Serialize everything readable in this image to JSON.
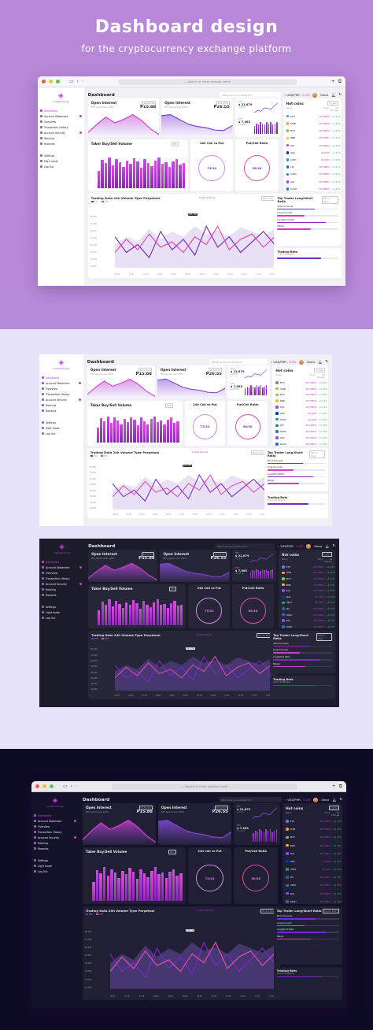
{
  "hero": {
    "title": "Dashboard design",
    "subtitle": "for the cryptocurrency exchange platform"
  },
  "browser": {
    "address_placeholder": "Search or enter website name"
  },
  "brand": {
    "name": "CryptoExchange",
    "accent": "#c93be0",
    "pink": "#e0389e"
  },
  "sidebar": {
    "items": [
      {
        "label": "Dashboard",
        "icon": "dashboard-icon",
        "active": true
      },
      {
        "label": "Account Statement",
        "icon": "statement-icon",
        "badge": true
      },
      {
        "label": "Overview",
        "icon": "overview-icon"
      },
      {
        "label": "Transaction History",
        "icon": "history-icon"
      },
      {
        "label": "Account Security",
        "icon": "security-icon",
        "badge": true
      },
      {
        "label": "Ranking",
        "icon": "ranking-icon"
      },
      {
        "label": "Rewards",
        "icon": "rewards-icon"
      }
    ],
    "bottom_light": [
      {
        "label": "Settings",
        "icon": "gear-icon"
      },
      {
        "label": "Dark mode",
        "icon": "moon-icon"
      },
      {
        "label": "Log Out",
        "icon": "logout-icon"
      }
    ],
    "bottom_dark": [
      {
        "label": "Settings",
        "icon": "gear-icon"
      },
      {
        "label": "Light mode",
        "icon": "sun-icon"
      },
      {
        "label": "Log Out",
        "icon": "logout-icon"
      }
    ]
  },
  "topbar": {
    "title": "Dashboard",
    "search_placeholder": "What are you looking for?",
    "pair": "USD/PHR",
    "pair_delta": "- 0.4%",
    "user": "Diana"
  },
  "open_interest": [
    {
      "title": "Open Interest",
      "tag": "BCH/USD",
      "sub": "BTC typical over 100%",
      "value": "P15.88"
    },
    {
      "title": "Open Interest",
      "tag": "BCH/USD",
      "sub": "BTC typical over 100%",
      "value": "P26.55"
    }
  ],
  "price_card": {
    "btc": {
      "label": "BTC",
      "value": "$ 21,879",
      "change": "+2.3%"
    },
    "eth": {
      "label": "ETH",
      "value": "$ 7,963",
      "change": "+1.27%"
    }
  },
  "taker": {
    "title": "Taker Buy/Sell Volume",
    "tag": "BTC",
    "series": [
      {
        "name": "Buy",
        "values": [
          42,
          68,
          60,
          74,
          55,
          70,
          62,
          50,
          66,
          58,
          72,
          64,
          48,
          70,
          60,
          52,
          66,
          74,
          58,
          62,
          50,
          64,
          70,
          56,
          60
        ]
      },
      {
        "name": "Sell",
        "values": [
          20,
          30,
          25,
          35,
          28,
          32,
          30,
          22,
          34,
          26,
          30,
          28,
          20,
          32,
          26,
          24,
          30,
          34,
          26,
          28,
          22,
          30,
          32,
          24,
          28
        ]
      }
    ]
  },
  "call_put": {
    "title": "24h Call vs Put",
    "value": "75/54"
  },
  "put_call": {
    "title": "Put/Call Ratio",
    "value": "58/38"
  },
  "hot_coins": {
    "title": "Hot coins",
    "filter": "Crypto",
    "columns": [
      "Name",
      "Price",
      "24 Change"
    ],
    "rows": [
      {
        "name": "ETH",
        "price": "P0738827",
        "change": "+2.23%",
        "color": "#627eea"
      },
      {
        "name": "SHIB",
        "price": "P0738827",
        "change": "+2.25%",
        "color": "#f0a030"
      },
      {
        "name": "BCH",
        "price": "P0738827",
        "change": "+2.23%",
        "color": "#8dc351"
      },
      {
        "name": "BNB",
        "price": "P0738827",
        "change": "+2.23%",
        "color": "#f3ba2f"
      },
      {
        "name": "SOL",
        "price": "P0738827",
        "change": "+2.23%",
        "color": "#9945ff"
      },
      {
        "name": "ADA",
        "price": "$0.2057",
        "change": "+2.23%",
        "color": "#0033ad"
      },
      {
        "name": "USDT",
        "price": "$0.2027",
        "change": "+2.23%",
        "color": "#26a17b"
      },
      {
        "name": "LTC",
        "price": "P0738827",
        "change": "+2.23%",
        "color": "#345d9d"
      },
      {
        "name": "USDC",
        "price": "P0738827",
        "change": "+2.23%",
        "color": "#2775ca"
      },
      {
        "name": "SOL",
        "price": "P0738827",
        "change": "+2.23%",
        "color": "#9945ff"
      },
      {
        "name": "DASH",
        "price": "P0738827",
        "change": "+2.23%",
        "color": "#1c75bc"
      }
    ]
  },
  "trading": {
    "title": "Trading Data 24h Volume Type Perpetual",
    "tag1": "Crypto Futures",
    "tag2": "Period 8min",
    "legend": [
      "BTC",
      "ETH"
    ],
    "y_ticks": [
      "80,000",
      "70,000",
      "60,000",
      "50,000",
      "40,000",
      "30,000",
      "20,000",
      "10,000"
    ],
    "x_ticks": [
      "06:30",
      "07:00",
      "07:30",
      "08:00",
      "08:30",
      "09:00",
      "09:30",
      "10:00",
      "10:30",
      "11:00",
      "11:30",
      "12:00"
    ],
    "tooltip": "$45,760"
  },
  "long_short": {
    "title": "Top Trader Long/Short Ratio",
    "tag": "Period 8min",
    "rows": [
      {
        "label": "Short Accounts",
        "value": 0.62
      },
      {
        "label": "Long Accounts",
        "value": 0.45
      },
      {
        "label": "Long/Short Ratio",
        "value": 0.8
      },
      {
        "label": "Margin",
        "value": 0.55
      }
    ]
  },
  "bots": {
    "title": "Trading Bots",
    "sub": "Active Strategies",
    "value": 0.72
  }
}
